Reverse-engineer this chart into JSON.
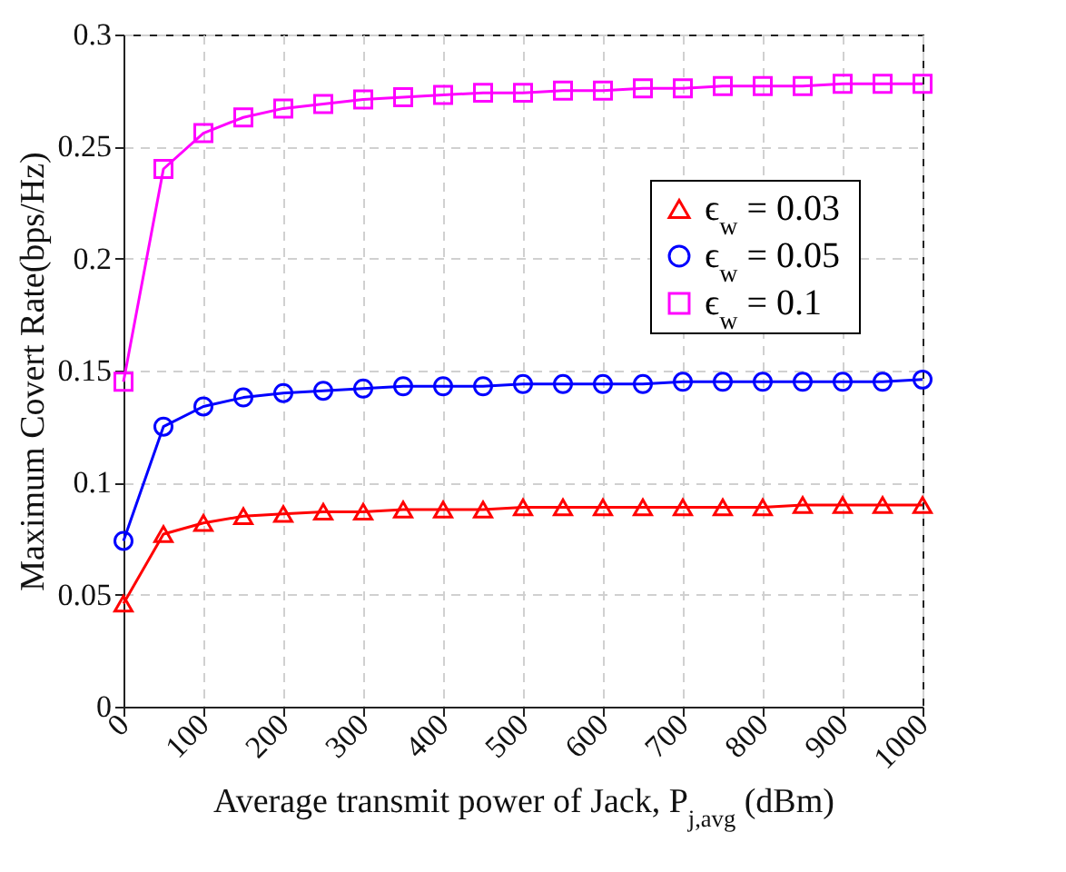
{
  "chart_data": {
    "type": "line",
    "xlabel": "Average transmit power of Jack, P$_{j,avg}$ (dBm)",
    "ylabel": "Maximum Covert Rate(bps/Hz)",
    "x": [
      0,
      50,
      100,
      150,
      200,
      250,
      300,
      350,
      400,
      450,
      500,
      550,
      600,
      650,
      700,
      750,
      800,
      850,
      900,
      950,
      1000
    ],
    "series": [
      {
        "name": "ϵ$_{w}$ = 0.03",
        "color": "#ff0000",
        "marker": "triangle",
        "values": [
          0.046,
          0.077,
          0.082,
          0.085,
          0.086,
          0.087,
          0.087,
          0.088,
          0.088,
          0.088,
          0.089,
          0.089,
          0.089,
          0.089,
          0.089,
          0.089,
          0.089,
          0.09,
          0.09,
          0.09,
          0.09
        ]
      },
      {
        "name": "ϵ$_{w}$ = 0.05",
        "color": "#0000ff",
        "marker": "circle",
        "values": [
          0.074,
          0.125,
          0.134,
          0.138,
          0.14,
          0.141,
          0.142,
          0.143,
          0.143,
          0.143,
          0.144,
          0.144,
          0.144,
          0.144,
          0.145,
          0.145,
          0.145,
          0.145,
          0.145,
          0.145,
          0.146
        ]
      },
      {
        "name": "ϵ$_{w}$ = 0.1",
        "color": "#ff00ff",
        "marker": "square",
        "values": [
          0.145,
          0.24,
          0.256,
          0.263,
          0.267,
          0.269,
          0.271,
          0.272,
          0.273,
          0.274,
          0.274,
          0.275,
          0.275,
          0.276,
          0.276,
          0.277,
          0.277,
          0.277,
          0.278,
          0.278,
          0.278
        ]
      }
    ],
    "xlim": [
      0,
      1000
    ],
    "xticks": [
      0,
      100,
      200,
      300,
      400,
      500,
      600,
      700,
      800,
      900,
      1000
    ],
    "ylim": [
      0,
      0.3
    ],
    "yticks": [
      0,
      0.05,
      0.1,
      0.15,
      0.2,
      0.25,
      0.3
    ],
    "grid": true,
    "legend": "top right",
    "line_style": "solid"
  }
}
